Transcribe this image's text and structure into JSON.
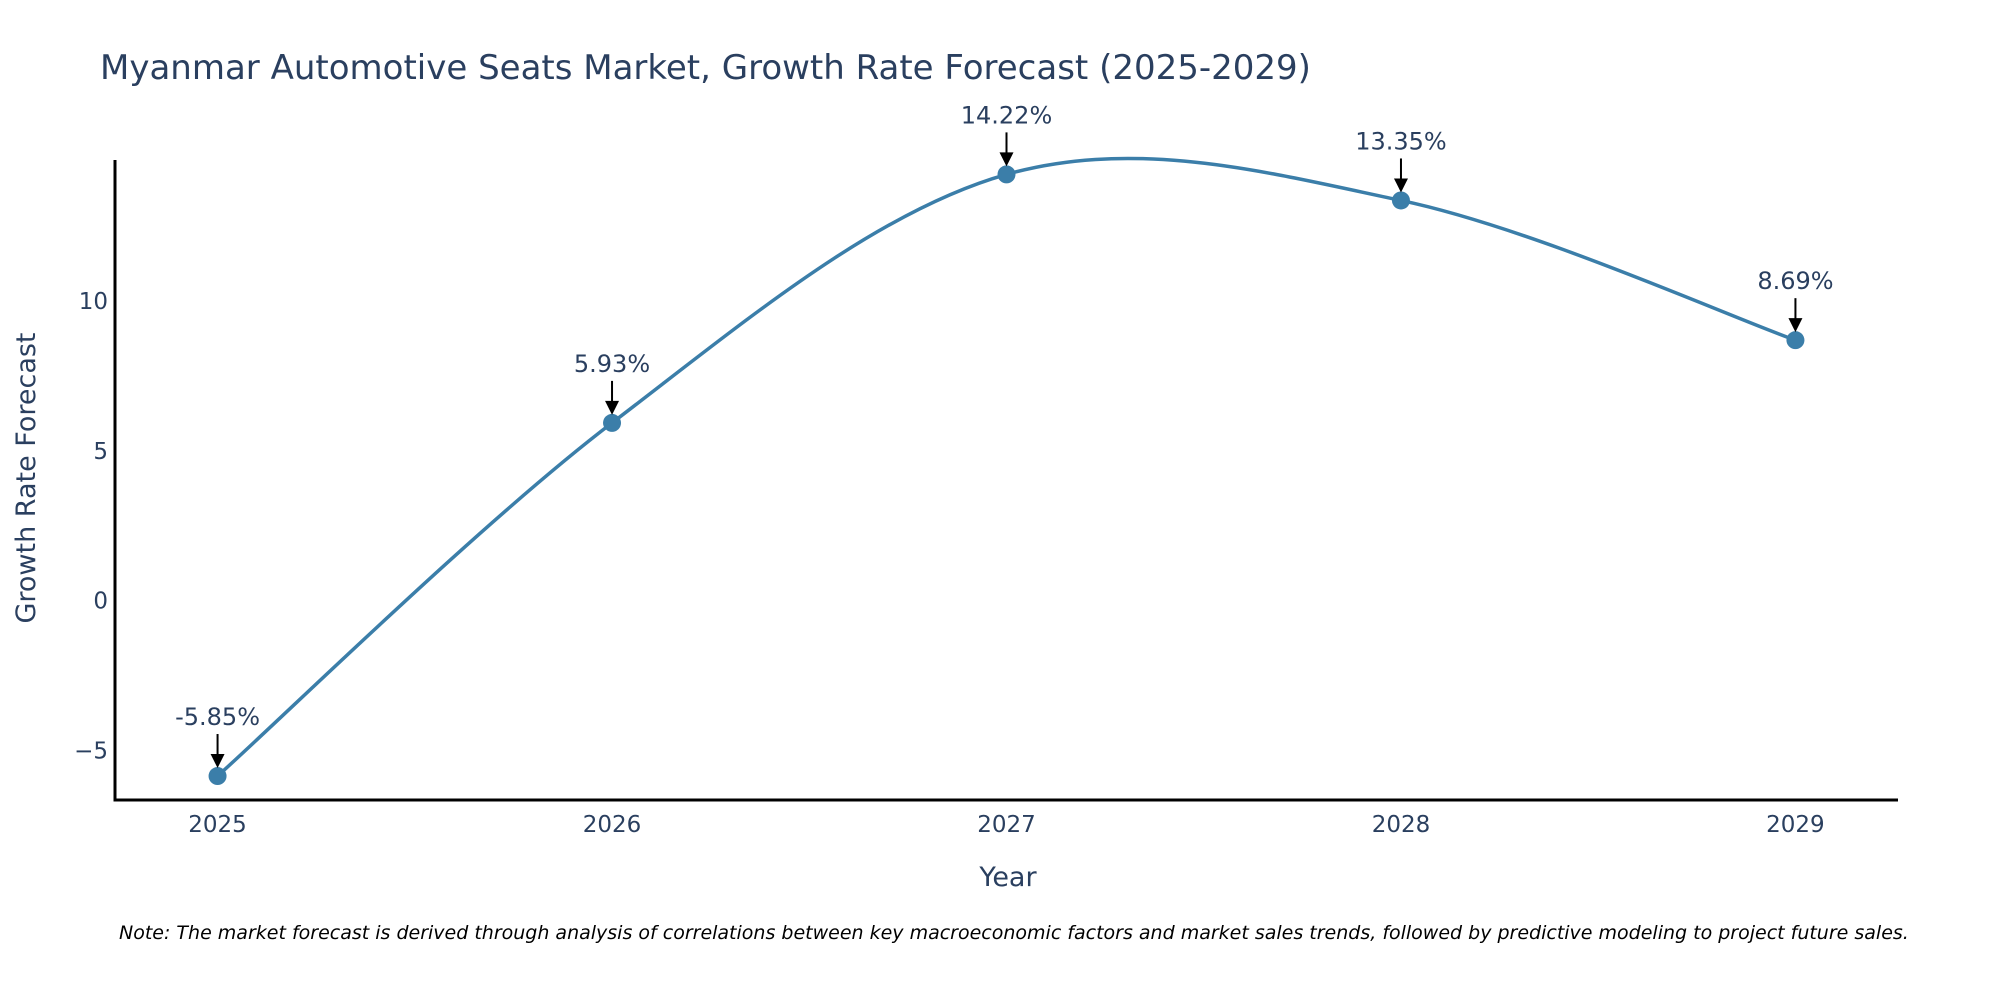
{
  "colors": {
    "line": "#3b7ea9",
    "marker": "#3b7ea9",
    "text": "#2a3f5f",
    "axis": "#000000",
    "arrow": "#000000"
  },
  "chart_data": {
    "type": "line",
    "title": "Myanmar Automotive Seats Market, Growth Rate Forecast (2025-2029)",
    "xlabel": "Year",
    "ylabel": "Growth Rate Forecast",
    "categories": [
      "2025",
      "2026",
      "2027",
      "2028",
      "2029"
    ],
    "series": [
      {
        "name": "Growth Rate Forecast",
        "values": [
          -5.85,
          5.93,
          14.22,
          13.35,
          8.69
        ],
        "labels": [
          "-5.85%",
          "5.93%",
          "14.22%",
          "13.35%",
          "8.69%"
        ]
      }
    ],
    "yticks": [
      -5,
      0,
      5,
      10
    ],
    "ytick_labels": [
      "−5",
      "0",
      "5",
      "10"
    ],
    "ylim": [
      -6.65,
      14.7
    ],
    "xlim": [
      -0.26,
      4.26
    ],
    "grid": false,
    "line_shape": "spline",
    "note": "Note: The market forecast is derived through analysis of correlations between key macroeconomic factors and market sales trends, followed by predictive modeling to project future sales."
  }
}
